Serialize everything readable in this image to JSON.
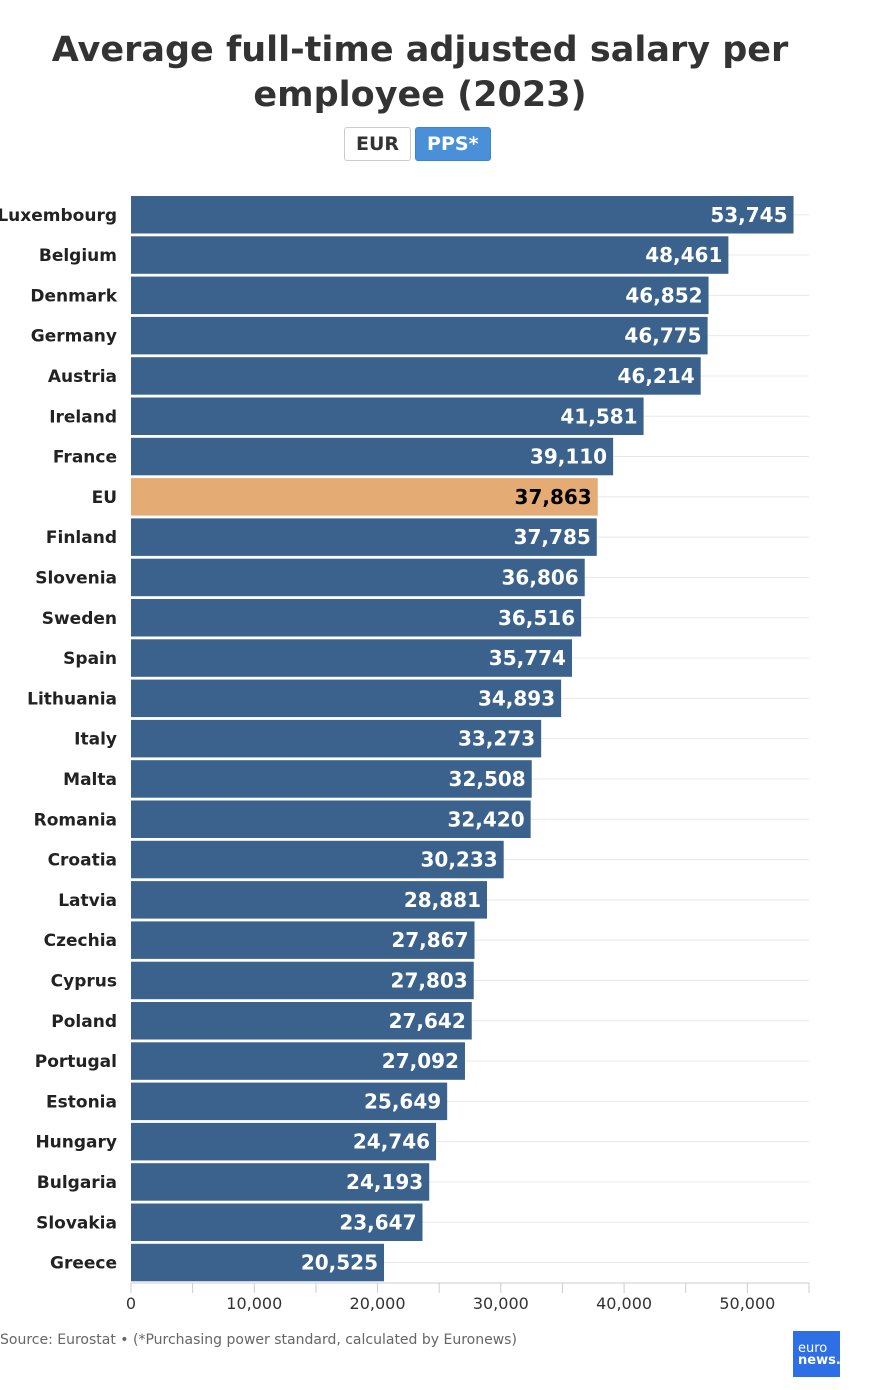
{
  "title": "Average full-time adjusted salary per employee (2023)",
  "toggle": {
    "options": [
      "EUR",
      "PPS*"
    ],
    "selected": "PPS*"
  },
  "footer": {
    "source": "Source: Eurostat • (*Purchasing power standard, calculated by Euronews)"
  },
  "logo": {
    "line1": "euro",
    "line2": "news."
  },
  "colors": {
    "bar": "#3a628c",
    "highlight": "#e5ab74",
    "button_active": "#4a90d9"
  },
  "chart_data": {
    "type": "bar",
    "orientation": "horizontal",
    "title": "Average full-time adjusted salary per employee (2023)",
    "categories": [
      "Luxembourg",
      "Belgium",
      "Denmark",
      "Germany",
      "Austria",
      "Ireland",
      "France",
      "EU",
      "Finland",
      "Slovenia",
      "Sweden",
      "Spain",
      "Lithuania",
      "Italy",
      "Malta",
      "Romania",
      "Croatia",
      "Latvia",
      "Czechia",
      "Cyprus",
      "Poland",
      "Portugal",
      "Estonia",
      "Hungary",
      "Bulgaria",
      "Slovakia",
      "Greece"
    ],
    "values": [
      53745,
      48461,
      46852,
      46775,
      46214,
      41581,
      39110,
      37863,
      37785,
      36806,
      36516,
      35774,
      34893,
      33273,
      32508,
      32420,
      30233,
      28881,
      27867,
      27803,
      27642,
      27092,
      25649,
      24746,
      24193,
      23647,
      20525
    ],
    "value_labels": [
      "53,745",
      "48,461",
      "46,852",
      "46,775",
      "46,214",
      "41,581",
      "39,110",
      "37,863",
      "37,785",
      "36,806",
      "36,516",
      "35,774",
      "34,893",
      "33,273",
      "32,508",
      "32,420",
      "30,233",
      "28,881",
      "27,867",
      "27,803",
      "27,642",
      "27,092",
      "25,649",
      "24,746",
      "24,193",
      "23,647",
      "20,525"
    ],
    "highlight": "EU",
    "xlim": [
      0,
      55000
    ],
    "xticks": [
      0,
      10000,
      20000,
      30000,
      40000,
      50000
    ],
    "xtick_labels": [
      "0",
      "10,000",
      "20,000",
      "30,000",
      "40,000",
      "50,000"
    ],
    "grid": true,
    "xlabel": "",
    "ylabel": ""
  }
}
